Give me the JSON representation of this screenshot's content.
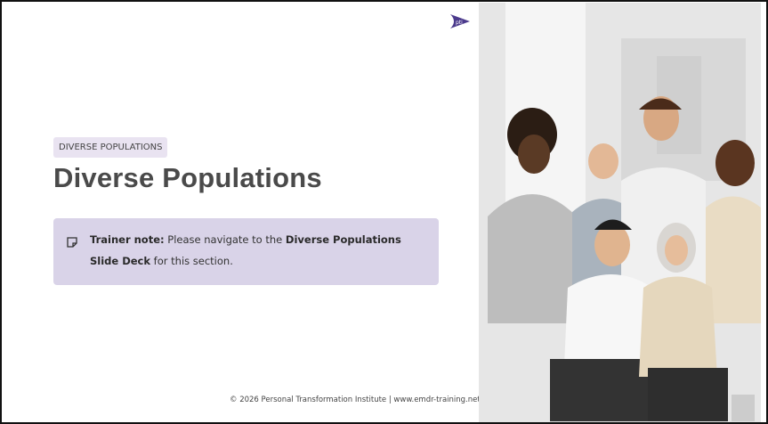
{
  "logo": {
    "text": "pti"
  },
  "slide": {
    "tag": "DIVERSE POPULATIONS",
    "title": "Diverse Populations",
    "note": {
      "label": "Trainer note:",
      "parts": [
        "Please navigate to the",
        "Diverse Populations Slide Deck",
        "for this section."
      ]
    },
    "footer": "© 2026 Personal Transformation Institute | www.emdr-training.net"
  }
}
